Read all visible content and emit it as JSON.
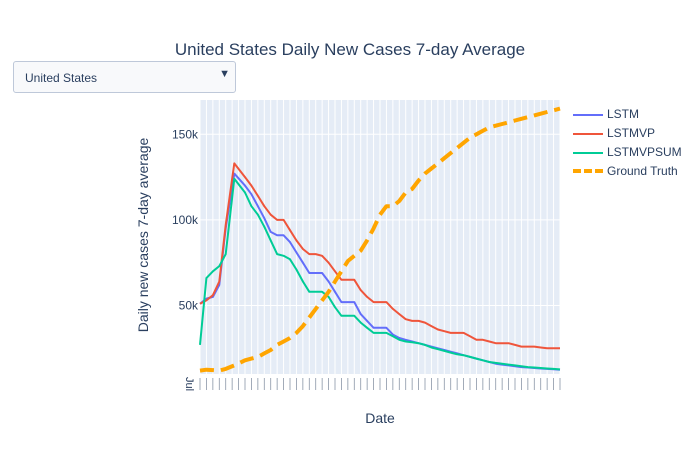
{
  "dropdown": {
    "selected": "United States",
    "arrow": "▼"
  },
  "colors": {
    "LSTM": "#636efa",
    "LSTMVP": "#ef553b",
    "LSTMVPSUM": "#00cc96",
    "Ground Truth": "#ffa500",
    "plot_bg": "#e5ecf6",
    "text": "#2a3f5f"
  },
  "chart_data": {
    "type": "line",
    "title": "United States Daily New Cases 7-day Average",
    "xlabel": "Date",
    "ylabel": "Daily new cases 7-day average",
    "x_axis_first_label": "Jul",
    "ylim": [
      10000,
      170000
    ],
    "yticks": [
      50000,
      100000,
      150000
    ],
    "ytick_labels": [
      "50k",
      "100k",
      "150k"
    ],
    "grid": true,
    "legend_position": "top-right",
    "x": [
      0,
      3,
      6,
      9,
      12,
      16,
      21,
      24,
      27,
      30,
      33,
      36,
      39,
      42,
      45,
      48,
      51,
      54,
      57,
      60,
      63,
      66,
      69,
      72,
      75,
      78,
      81,
      84,
      87,
      90,
      93,
      96,
      99,
      102,
      105,
      108,
      111,
      114,
      117,
      120,
      123,
      126,
      129,
      132,
      135,
      138,
      141,
      144,
      147,
      150,
      153,
      156,
      159,
      162,
      165,
      168
    ],
    "series": [
      {
        "name": "LSTM",
        "line": "solid",
        "values": [
          51000,
          54000,
          55000,
          62000,
          95000,
          127000,
          120000,
          115000,
          108000,
          101000,
          93000,
          91000,
          91000,
          87000,
          81000,
          75000,
          69000,
          69000,
          69000,
          64000,
          58000,
          52000,
          52000,
          52000,
          45000,
          41000,
          37000,
          37000,
          37000,
          33000,
          31000,
          30000,
          29000,
          28000,
          27000,
          26000,
          25000,
          24000,
          23000,
          22000,
          21000,
          20000,
          19000,
          18000,
          17000,
          16000,
          15500,
          15000,
          14500,
          14000,
          13800,
          13500,
          13200,
          13000,
          12800,
          12500
        ]
      },
      {
        "name": "LSTMVP",
        "line": "solid",
        "values": [
          51000,
          53000,
          56000,
          64000,
          97000,
          133000,
          125000,
          120000,
          114000,
          108000,
          103000,
          100000,
          100000,
          94000,
          88000,
          83000,
          80000,
          80000,
          79000,
          75000,
          70000,
          65000,
          65000,
          65000,
          59000,
          55000,
          52000,
          52000,
          52000,
          48000,
          45000,
          42000,
          41000,
          41000,
          40000,
          38000,
          36000,
          35000,
          34000,
          34000,
          34000,
          32000,
          30000,
          30000,
          29000,
          28000,
          28000,
          28000,
          27000,
          26000,
          26000,
          26000,
          25500,
          25000,
          25000,
          25000
        ]
      },
      {
        "name": "LSTMVPSUM",
        "line": "solid",
        "values": [
          27000,
          66000,
          70000,
          73000,
          80000,
          124000,
          116000,
          108000,
          103000,
          96000,
          88000,
          80000,
          79000,
          77000,
          71000,
          64000,
          58000,
          58000,
          58000,
          55000,
          49000,
          44000,
          44000,
          44000,
          40000,
          37000,
          34000,
          34000,
          34000,
          32000,
          30000,
          29000,
          28500,
          28000,
          27000,
          25500,
          24500,
          23500,
          22500,
          21500,
          21000,
          20000,
          19000,
          18000,
          17000,
          16500,
          16000,
          15500,
          15000,
          14500,
          14000,
          13800,
          13500,
          13200,
          13000,
          12700
        ]
      },
      {
        "name": "Ground Truth",
        "line": "dash",
        "values": [
          12000,
          12500,
          12300,
          12000,
          13000,
          15000,
          18000,
          19000,
          20000,
          22000,
          24000,
          27000,
          29000,
          31000,
          34000,
          38000,
          43000,
          48000,
          53000,
          58000,
          64000,
          70000,
          76000,
          79000,
          82000,
          88000,
          95000,
          103000,
          108000,
          108000,
          111000,
          116000,
          118000,
          123000,
          127000,
          130000,
          133000,
          136000,
          139000,
          142000,
          145000,
          148000,
          150000,
          152000,
          154000,
          155000,
          156000,
          157000,
          158000,
          159000,
          160000,
          161000,
          162000,
          163000,
          164000,
          165000
        ]
      }
    ]
  }
}
